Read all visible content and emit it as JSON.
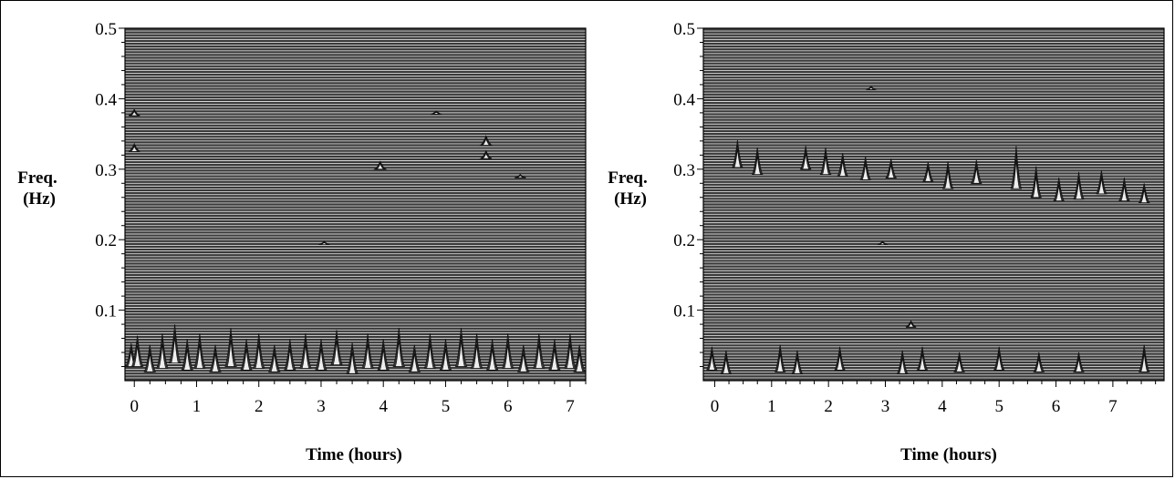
{
  "chart_data": [
    {
      "type": "area",
      "xlabel": "Time (hours)",
      "ylabel_line1": "Freq.",
      "ylabel_line2": "(Hz)",
      "xlim": [
        -0.15,
        7.25
      ],
      "ylim": [
        0,
        0.5
      ],
      "x_ticks": [
        "0",
        "1",
        "2",
        "3",
        "4",
        "5",
        "6",
        "7"
      ],
      "y_ticks": [
        "0.1",
        "0.2",
        "0.3",
        "0.4",
        "0.5"
      ],
      "background_color": "#3a3a3a",
      "band_colors": [
        "#8a8a8a",
        "#c2c2c2",
        "#eeeeee"
      ],
      "spectral_peaks": [
        {
          "t": -0.05,
          "f": 0.035,
          "h": 0.03
        },
        {
          "t": 0.05,
          "f": 0.04,
          "h": 0.04
        },
        {
          "t": 0.25,
          "f": 0.03,
          "h": 0.035
        },
        {
          "t": 0.45,
          "f": 0.04,
          "h": 0.045
        },
        {
          "t": 0.65,
          "f": 0.05,
          "h": 0.05
        },
        {
          "t": 0.85,
          "f": 0.035,
          "h": 0.04
        },
        {
          "t": 1.05,
          "f": 0.04,
          "h": 0.045
        },
        {
          "t": 1.3,
          "f": 0.03,
          "h": 0.035
        },
        {
          "t": 1.55,
          "f": 0.045,
          "h": 0.05
        },
        {
          "t": 1.8,
          "f": 0.035,
          "h": 0.04
        },
        {
          "t": 2.0,
          "f": 0.04,
          "h": 0.045
        },
        {
          "t": 2.25,
          "f": 0.03,
          "h": 0.035
        },
        {
          "t": 2.5,
          "f": 0.035,
          "h": 0.04
        },
        {
          "t": 2.75,
          "f": 0.04,
          "h": 0.045
        },
        {
          "t": 3.0,
          "f": 0.035,
          "h": 0.04
        },
        {
          "t": 3.25,
          "f": 0.045,
          "h": 0.045
        },
        {
          "t": 3.5,
          "f": 0.03,
          "h": 0.04
        },
        {
          "t": 3.75,
          "f": 0.04,
          "h": 0.045
        },
        {
          "t": 4.0,
          "f": 0.035,
          "h": 0.04
        },
        {
          "t": 4.25,
          "f": 0.045,
          "h": 0.05
        },
        {
          "t": 4.5,
          "f": 0.03,
          "h": 0.035
        },
        {
          "t": 4.75,
          "f": 0.04,
          "h": 0.045
        },
        {
          "t": 5.0,
          "f": 0.035,
          "h": 0.04
        },
        {
          "t": 5.25,
          "f": 0.045,
          "h": 0.05
        },
        {
          "t": 5.5,
          "f": 0.04,
          "h": 0.045
        },
        {
          "t": 5.75,
          "f": 0.035,
          "h": 0.04
        },
        {
          "t": 6.0,
          "f": 0.04,
          "h": 0.045
        },
        {
          "t": 6.25,
          "f": 0.03,
          "h": 0.035
        },
        {
          "t": 6.5,
          "f": 0.04,
          "h": 0.045
        },
        {
          "t": 6.75,
          "f": 0.035,
          "h": 0.04
        },
        {
          "t": 7.0,
          "f": 0.04,
          "h": 0.045
        },
        {
          "t": 7.15,
          "f": 0.03,
          "h": 0.035
        },
        {
          "t": 0.0,
          "f": 0.38,
          "h": 0.008
        },
        {
          "t": 0.0,
          "f": 0.33,
          "h": 0.01
        },
        {
          "t": 3.95,
          "f": 0.305,
          "h": 0.01
        },
        {
          "t": 5.65,
          "f": 0.34,
          "h": 0.012
        },
        {
          "t": 5.65,
          "f": 0.32,
          "h": 0.01
        },
        {
          "t": 4.85,
          "f": 0.38,
          "h": 0.004
        },
        {
          "t": 3.05,
          "f": 0.195,
          "h": 0.004
        },
        {
          "t": 6.2,
          "f": 0.29,
          "h": 0.004
        }
      ]
    },
    {
      "type": "area",
      "xlabel": "Time (hours)",
      "ylabel_line1": "Freq.",
      "ylabel_line2": "(Hz)",
      "xlim": [
        -0.2,
        7.9
      ],
      "ylim": [
        0,
        0.5
      ],
      "x_ticks": [
        "0",
        "1",
        "2",
        "3",
        "4",
        "5",
        "6",
        "7"
      ],
      "y_ticks": [
        "0.1",
        "0.2",
        "0.3",
        "0.4",
        "0.5"
      ],
      "background_color": "#3a3a3a",
      "band_colors": [
        "#8a8a8a",
        "#c2c2c2",
        "#eeeeee"
      ],
      "spectral_peaks": [
        {
          "t": -0.05,
          "f": 0.03,
          "h": 0.03
        },
        {
          "t": 0.2,
          "f": 0.025,
          "h": 0.03
        },
        {
          "t": 1.15,
          "f": 0.03,
          "h": 0.035
        },
        {
          "t": 1.45,
          "f": 0.025,
          "h": 0.03
        },
        {
          "t": 2.2,
          "f": 0.03,
          "h": 0.03
        },
        {
          "t": 3.3,
          "f": 0.025,
          "h": 0.03
        },
        {
          "t": 3.65,
          "f": 0.03,
          "h": 0.03
        },
        {
          "t": 4.3,
          "f": 0.025,
          "h": 0.025
        },
        {
          "t": 5.0,
          "f": 0.03,
          "h": 0.03
        },
        {
          "t": 5.7,
          "f": 0.025,
          "h": 0.025
        },
        {
          "t": 6.4,
          "f": 0.025,
          "h": 0.025
        },
        {
          "t": 7.55,
          "f": 0.03,
          "h": 0.035
        },
        {
          "t": 0.4,
          "f": 0.32,
          "h": 0.035
        },
        {
          "t": 0.75,
          "f": 0.31,
          "h": 0.035
        },
        {
          "t": 1.6,
          "f": 0.315,
          "h": 0.03
        },
        {
          "t": 1.95,
          "f": 0.31,
          "h": 0.035
        },
        {
          "t": 2.25,
          "f": 0.305,
          "h": 0.03
        },
        {
          "t": 2.65,
          "f": 0.3,
          "h": 0.03
        },
        {
          "t": 3.1,
          "f": 0.3,
          "h": 0.025
        },
        {
          "t": 3.75,
          "f": 0.295,
          "h": 0.025
        },
        {
          "t": 4.1,
          "f": 0.29,
          "h": 0.035
        },
        {
          "t": 4.6,
          "f": 0.295,
          "h": 0.03
        },
        {
          "t": 5.3,
          "f": 0.3,
          "h": 0.055
        },
        {
          "t": 5.65,
          "f": 0.28,
          "h": 0.04
        },
        {
          "t": 6.05,
          "f": 0.27,
          "h": 0.03
        },
        {
          "t": 6.4,
          "f": 0.275,
          "h": 0.035
        },
        {
          "t": 6.8,
          "f": 0.28,
          "h": 0.03
        },
        {
          "t": 7.2,
          "f": 0.27,
          "h": 0.03
        },
        {
          "t": 7.55,
          "f": 0.265,
          "h": 0.025
        },
        {
          "t": 2.75,
          "f": 0.415,
          "h": 0.004
        },
        {
          "t": 3.45,
          "f": 0.08,
          "h": 0.008
        },
        {
          "t": 2.95,
          "f": 0.195,
          "h": 0.004
        }
      ]
    }
  ]
}
